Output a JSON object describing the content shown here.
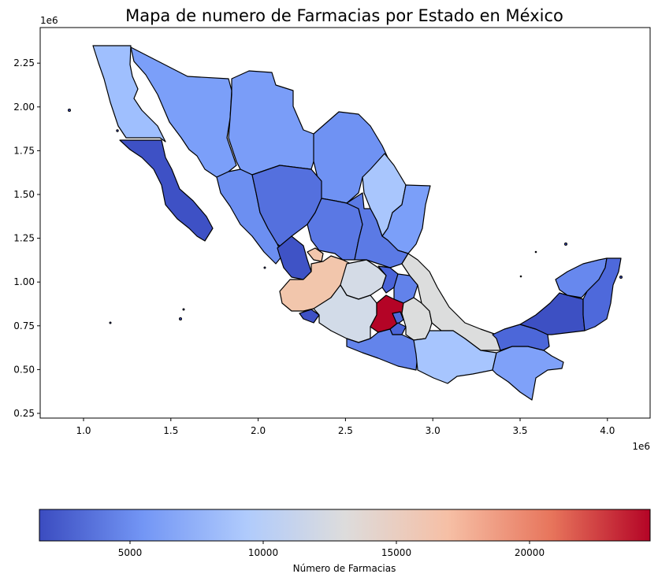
{
  "title": "Mapa de numero de Farmacias por Estado en México",
  "map": {
    "x_ticks": [
      "1.0",
      "1.5",
      "2.0",
      "2.5",
      "3.0",
      "3.5",
      "4.0"
    ],
    "x_offset": "1e6",
    "y_ticks": [
      "0.25",
      "0.50",
      "0.75",
      "1.00",
      "1.25",
      "1.50",
      "1.75",
      "2.00",
      "2.25"
    ],
    "y_offset": "1e6"
  },
  "colorbar": {
    "label": "Número de Farmacias",
    "ticks": [
      "5000",
      "10000",
      "15000",
      "20000"
    ],
    "colormap": "coolwarm",
    "stops": [
      "#3b4cc0",
      "#7396f5",
      "#b0cbfc",
      "#dddcdc",
      "#f6bfa5",
      "#e7745b",
      "#b40426"
    ]
  },
  "colors": {
    "low": "#3b4cc0",
    "high": "#b40426",
    "outline": "#000000"
  }
}
